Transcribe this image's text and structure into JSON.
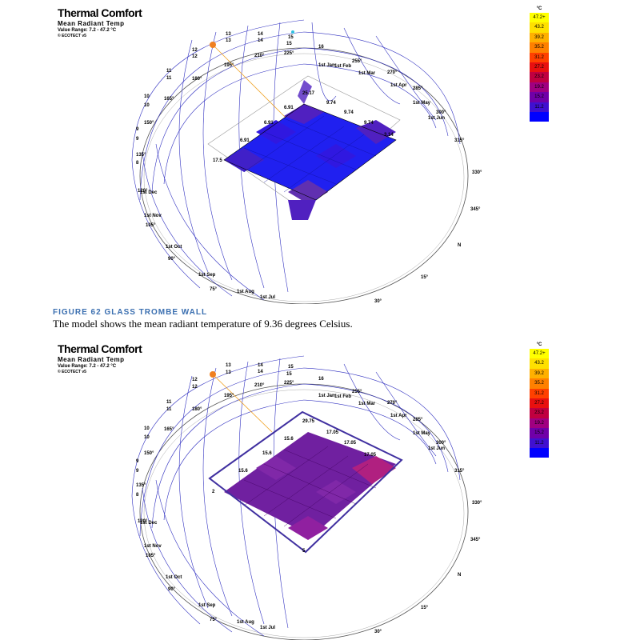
{
  "panels": [
    {
      "title": "Thermal Comfort",
      "subtitle": "Mean Radiant Temp",
      "value_range": "Value Range: 7.2 - 47.2 °C",
      "software": "© ECOTECT v5",
      "grid_values": [
        "25.17",
        "9.74",
        "6.91",
        "9.74",
        "6.91",
        "9.74",
        "6.91",
        "3.14",
        "17.5"
      ],
      "box_highlight": false
    },
    {
      "title": "Thermal Comfort",
      "subtitle": "Mean Radiant Temp",
      "value_range": "Value Range: 7.2 - 47.2 °C",
      "software": "© ECOTECT v5",
      "grid_values": [
        "29.75",
        "17.05",
        "15.6",
        "17.05",
        "15.6",
        "17.05",
        "15.6",
        "2",
        "5"
      ],
      "box_highlight": true
    }
  ],
  "legend": {
    "unit": "°C",
    "values": [
      "47.2+",
      "43.2",
      "39.2",
      "35.2",
      "31.2",
      "27.2",
      "23.2",
      "19.2",
      "15.2",
      "11.2",
      ""
    ],
    "colors": [
      "#ffff00",
      "#ffe000",
      "#ffb000",
      "#ff8000",
      "#ff4000",
      "#e81010",
      "#c00040",
      "#a00080",
      "#7000a8",
      "#4010d0",
      "#0000ff"
    ]
  },
  "sun_path_labels": {
    "hours": [
      "13",
      "14",
      "15",
      "16",
      "12",
      "11",
      "10",
      "9",
      "8",
      "13",
      "14",
      "15"
    ],
    "months": [
      "1st Jan",
      "1st Feb",
      "1st Mar",
      "1st Apr",
      "1st May",
      "1st Jun",
      "1st Dec",
      "1st Nov",
      "1st Oct",
      "1st Sep",
      "1st Aug",
      "1st Jul"
    ],
    "azimuths": [
      "195°",
      "210°",
      "225°",
      "255°",
      "270°",
      "285°",
      "300°",
      "315°",
      "330°",
      "345°",
      "N",
      "15°",
      "30°",
      "75°",
      "90°",
      "105°",
      "120°",
      "135°",
      "150°",
      "165°",
      "180°"
    ]
  },
  "caption": {
    "figure": "FIGURE 62 GLASS TROMBE WALL",
    "text": "The model shows the mean radiant temperature of 9.36 degrees Celsius."
  }
}
